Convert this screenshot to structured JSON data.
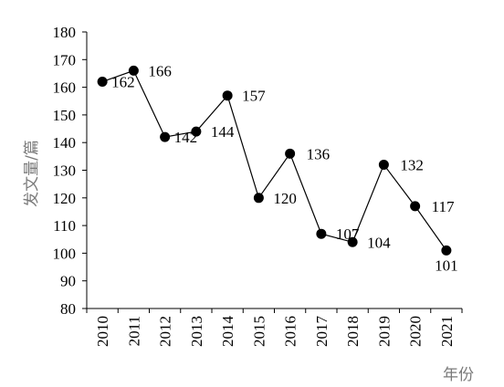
{
  "chart_data": {
    "type": "line",
    "title": "",
    "xlabel": "年份",
    "ylabel": "发文量/篇",
    "ylim": [
      80,
      180
    ],
    "yticks": [
      80,
      90,
      100,
      110,
      120,
      130,
      140,
      150,
      160,
      170,
      180
    ],
    "grid": false,
    "legend": "none",
    "categories": [
      "2010",
      "2011",
      "2012",
      "2013",
      "2014",
      "2015",
      "2016",
      "2017",
      "2018",
      "2019",
      "2020",
      "2021"
    ],
    "series": [
      {
        "values": [
          162,
          166,
          142,
          144,
          157,
          120,
          136,
          107,
          104,
          132,
          117,
          101
        ],
        "color": "#000000",
        "data_labels": [
          "162",
          "166",
          "142",
          "144",
          "157",
          "120",
          "136",
          "107",
          "104",
          "132",
          "117",
          "101"
        ]
      }
    ]
  }
}
